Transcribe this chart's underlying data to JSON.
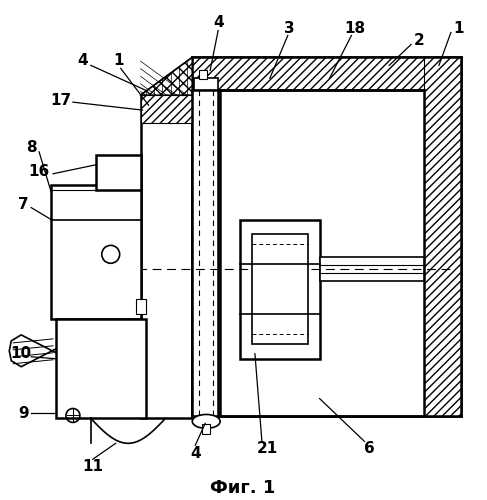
{
  "title": "Фиг. 1",
  "title_fontsize": 13,
  "background": "#ffffff",
  "lw_main": 1.8,
  "lw_med": 1.2,
  "lw_thin": 0.8,
  "label_fs": 11
}
